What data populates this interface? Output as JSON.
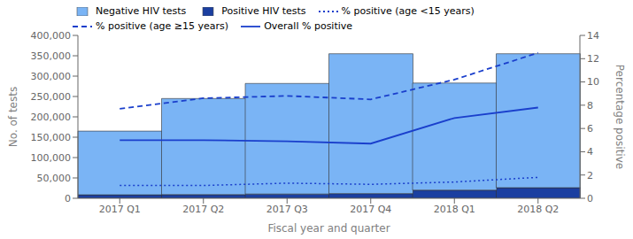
{
  "chart_data": {
    "type": "bar",
    "stacked": true,
    "grid": false,
    "legend": "upper left",
    "categories": [
      "2017 Q1",
      "2017 Q2",
      "2017 Q3",
      "2017 Q4",
      "2018 Q1",
      "2018 Q2"
    ],
    "xlabel": "Fiscal year and quarter",
    "ylabel": "No. of tests",
    "y2label": "Percentage positive",
    "ylim": [
      0,
      400000
    ],
    "yticks": [
      0,
      {
        "value": 50000,
        "label": "50,000"
      },
      {
        "value": 100000,
        "label": "100,000"
      },
      {
        "value": 150000,
        "label": "150,000"
      },
      {
        "value": 200000,
        "label": "200,000"
      },
      {
        "value": 250000,
        "label": "250,000"
      },
      {
        "value": 300000,
        "label": "300,000"
      },
      {
        "value": 350000,
        "label": "350,000"
      },
      {
        "value": 400000,
        "label": "400,000"
      }
    ],
    "y2lim": [
      0,
      14
    ],
    "y2ticks": [
      0,
      2,
      4,
      6,
      8,
      10,
      12,
      14
    ],
    "series": [
      {
        "name": "Negative HIV tests",
        "type": "bar",
        "color": "#7ab4f5",
        "values": [
          156500,
          236000,
          271500,
          343500,
          263000,
          329000
        ]
      },
      {
        "name": "Positive HIV tests",
        "type": "bar",
        "color": "#1b3fa0",
        "values": [
          8500,
          9000,
          10500,
          11500,
          20000,
          26000
        ]
      },
      {
        "name": "% positive (age <15 years)",
        "type": "line",
        "axis": "y2",
        "line_style": "dotted",
        "color": "#1a3fcc",
        "values": [
          1.1,
          1.1,
          1.3,
          1.2,
          1.4,
          1.8
        ]
      },
      {
        "name": "% positive (age ≥15 years)",
        "type": "line",
        "axis": "y2",
        "line_style": "dashed",
        "color": "#1a3fcc",
        "values": [
          7.7,
          8.6,
          8.8,
          8.5,
          10.2,
          12.5
        ]
      },
      {
        "name": "Overall % positive",
        "type": "line",
        "axis": "y2",
        "line_style": "solid",
        "color": "#1a3fcc",
        "values": [
          5.0,
          5.0,
          4.9,
          4.7,
          6.9,
          7.8
        ]
      }
    ]
  }
}
